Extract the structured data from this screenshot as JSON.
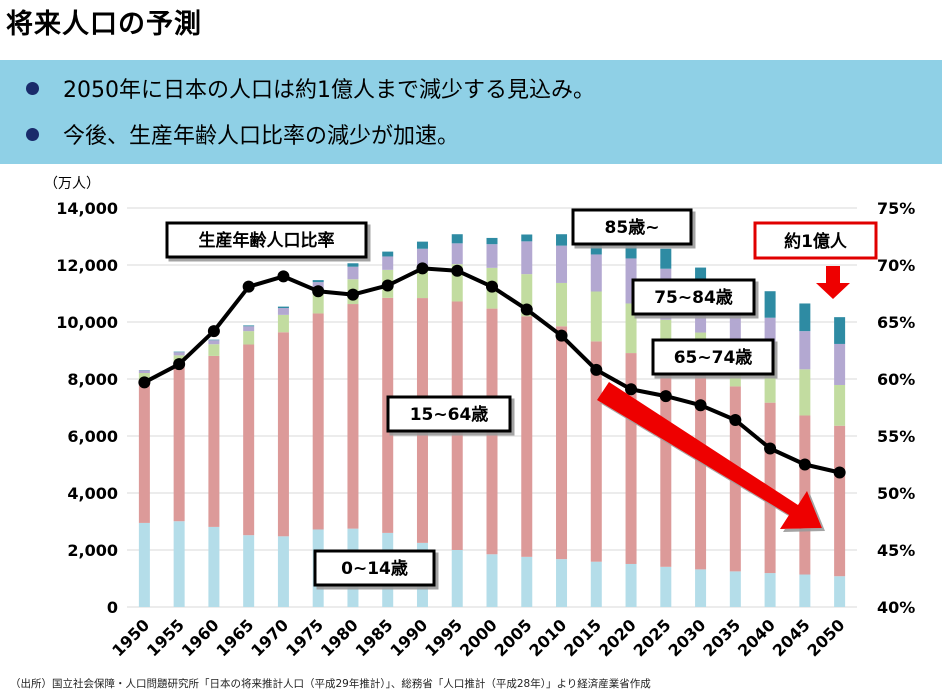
{
  "title": "将来人口の予測",
  "bullets": [
    "2050年に日本の人口は約1億人まで減少する見込み。",
    "今後、生産年齢人口比率の減少が加速。"
  ],
  "footnote": "（出所）国立社会保障・人口問題研究所「日本の将来推計人口（平成29年推計）」、総務省「人口推計（平成28年）」より経済産業省作成",
  "chart_data": {
    "type": "bar",
    "stacked": true,
    "categories": [
      "1950",
      "1955",
      "1960",
      "1965",
      "1970",
      "1975",
      "1980",
      "1985",
      "1990",
      "1995",
      "2000",
      "2005",
      "2010",
      "2015",
      "2020",
      "2025",
      "2030",
      "2035",
      "2040",
      "2045",
      "2050"
    ],
    "y_unit": "（万人）",
    "ylim": [
      0,
      14000
    ],
    "y_ticks": [
      "0",
      "2,000",
      "4,000",
      "6,000",
      "8,000",
      "10,000",
      "12,000",
      "14,000"
    ],
    "y2lim": [
      40,
      75
    ],
    "y2_ticks": [
      "40%",
      "45%",
      "50%",
      "55%",
      "60%",
      "65%",
      "70%",
      "75%"
    ],
    "series": [
      {
        "name": "0~14歳",
        "color": "#b4dde9",
        "values": [
          2950,
          3010,
          2810,
          2520,
          2480,
          2720,
          2750,
          2600,
          2250,
          2000,
          1850,
          1760,
          1680,
          1590,
          1510,
          1410,
          1320,
          1250,
          1190,
          1140,
          1080
        ]
      },
      {
        "name": "15~64歳",
        "color": "#dc9a99",
        "values": [
          4960,
          5470,
          6000,
          6690,
          7160,
          7580,
          7880,
          8250,
          8590,
          8720,
          8620,
          8440,
          8170,
          7730,
          7400,
          7170,
          6880,
          6490,
          5980,
          5580,
          5280
        ]
      },
      {
        "name": "65~74歳",
        "color": "#c2dca0",
        "values": [
          300,
          350,
          410,
          470,
          610,
          780,
          870,
          980,
          1100,
          1310,
          1430,
          1480,
          1520,
          1750,
          1740,
          1500,
          1430,
          1510,
          1680,
          1620,
          1430
        ]
      },
      {
        "name": "75~84歳",
        "color": "#b3a8d1",
        "values": [
          90,
          110,
          140,
          170,
          240,
          320,
          440,
          470,
          630,
          730,
          830,
          1150,
          1310,
          1300,
          1580,
          1790,
          1510,
          1400,
          1300,
          1340,
          1440
        ]
      },
      {
        "name": "85歳~",
        "color": "#2e8ba3",
        "values": [
          10,
          20,
          20,
          30,
          50,
          70,
          120,
          170,
          250,
          320,
          220,
          240,
          400,
          490,
          600,
          700,
          770,
          840,
          930,
          970,
          940
        ]
      }
    ],
    "ratio_line": {
      "name": "生産年齢人口比率",
      "unit": "%",
      "values": [
        59.7,
        61.3,
        64.2,
        68.1,
        69.0,
        67.7,
        67.4,
        68.2,
        69.7,
        69.5,
        68.1,
        66.1,
        63.8,
        60.8,
        59.1,
        58.5,
        57.7,
        56.4,
        53.9,
        52.5,
        51.8
      ]
    },
    "annotations": {
      "line_label": "生産年齢人口比率",
      "label_0_14": "0~14歳",
      "label_15_64": "15~64歳",
      "label_65_74": "65~74歳",
      "label_75_84": "75~84歳",
      "label_85": "85歳~",
      "total_2050": "約1億人"
    },
    "colors": {
      "line": "#000000",
      "arrow": "#ee0000",
      "callout_border": "#e00000"
    }
  }
}
